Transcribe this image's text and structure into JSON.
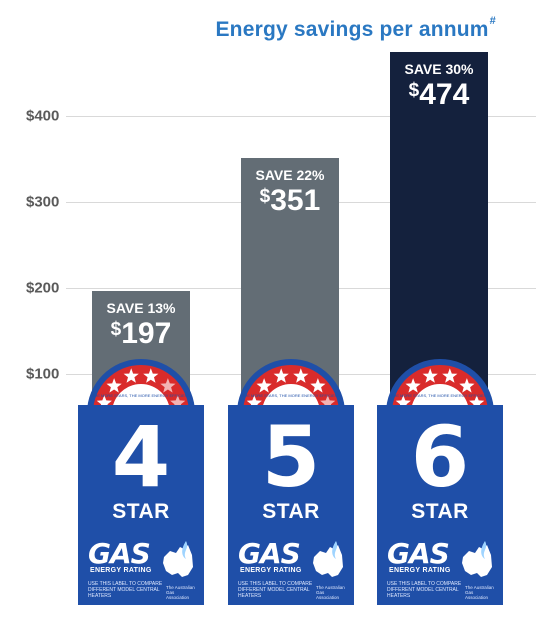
{
  "title": "Energy savings per annum",
  "title_mark": "#",
  "colors": {
    "title": "#2a78c2",
    "bar_grey": "#636d75",
    "bar_navy": "#14213d",
    "badge_blue": "#1f4fa8",
    "star_red": "#d92b2b"
  },
  "chart_data": {
    "type": "bar",
    "title": "Energy savings per annum",
    "categories": [
      "4 STAR",
      "5 STAR",
      "6 STAR"
    ],
    "values": [
      197,
      351,
      474
    ],
    "yticks": [
      "$100",
      "$200",
      "$300",
      "$400"
    ],
    "ytick_values": [
      100,
      200,
      300,
      400
    ],
    "ylim": [
      0,
      480
    ],
    "grid": true,
    "bars": [
      {
        "save": "SAVE 13%",
        "currency": "$",
        "value": "197",
        "color": "#636d75"
      },
      {
        "save": "SAVE 22%",
        "currency": "$",
        "value": "351",
        "color": "#636d75"
      },
      {
        "save": "SAVE 30%",
        "currency": "$",
        "value": "474",
        "color": "#14213d"
      }
    ]
  },
  "labels": [
    {
      "number": "4",
      "star": "STAR",
      "gas": "GAS",
      "rating": "ENERGY RATING",
      "fine": "USE THIS LABEL TO COMPARE DIFFERENT MODEL CENTRAL HEATERS",
      "assoc": "The Australian Gas Association",
      "dial_text": "THE MORE STARS, THE MORE ENERGY EFFICIENT",
      "stars_filled": 4
    },
    {
      "number": "5",
      "star": "STAR",
      "gas": "GAS",
      "rating": "ENERGY RATING",
      "fine": "USE THIS LABEL TO COMPARE DIFFERENT MODEL CENTRAL HEATERS",
      "assoc": "The Australian Gas Association",
      "dial_text": "THE MORE STARS, THE MORE ENERGY EFFICIENT",
      "stars_filled": 5
    },
    {
      "number": "6",
      "star": "STAR",
      "gas": "GAS",
      "rating": "ENERGY RATING",
      "fine": "USE THIS LABEL TO COMPARE DIFFERENT MODEL CENTRAL HEATERS",
      "assoc": "The Australian Gas Association",
      "dial_text": "THE MORE STARS, THE MORE ENERGY EFFICIENT",
      "stars_filled": 6
    }
  ]
}
